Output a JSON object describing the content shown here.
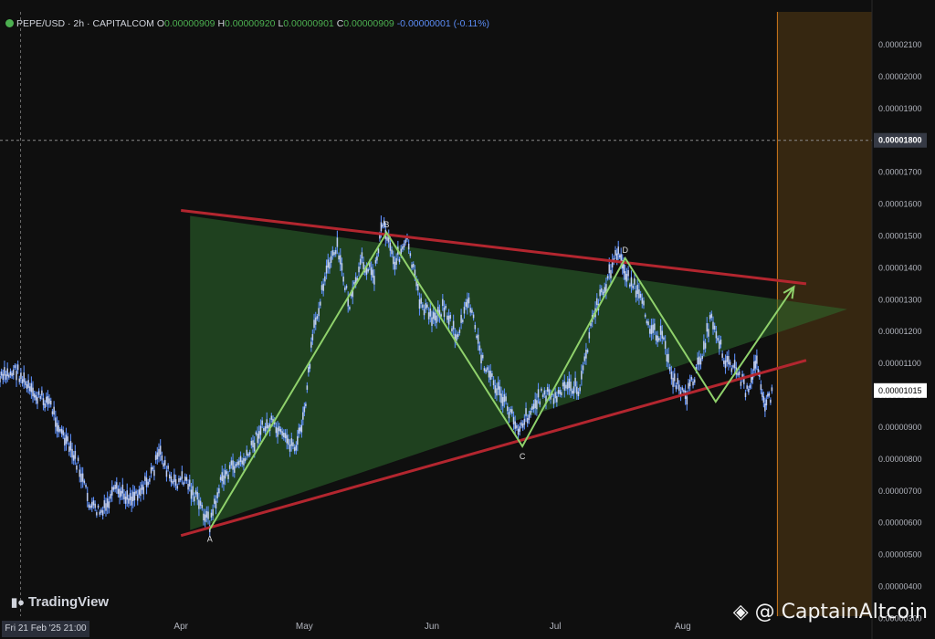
{
  "header": {
    "symbol_line": "PEPE/USD · 2h · CAPITALCOM",
    "open_label": "O",
    "open": "0.00000909",
    "high_label": "H",
    "high": "0.00000920",
    "low_label": "L",
    "low": "0.00000901",
    "close_label": "C",
    "close": "0.00000909",
    "change": "-0.00000001 (-0.11%)"
  },
  "crosshair_date": "Fri 21 Feb '25   21:00",
  "branding": {
    "tradingview": "TradingView",
    "watermark": "@ CaptainAltcoin"
  },
  "colors": {
    "background": "#0f0f0f",
    "candles": "#5b8cf5",
    "triangle_lines": "#b3262f",
    "triangle_fill": "#2e6b2e",
    "wave_line": "#8fd16b",
    "forecast_zone": "#3b2a12",
    "forecast_border": "#d07a1c"
  },
  "chart_data": {
    "type": "line",
    "title": "",
    "y_axis": {
      "min": 3.3e-06,
      "max": 2.16e-05,
      "tick_labels": [
        "0.00002100",
        "0.00002000",
        "0.00001900",
        "0.00001800",
        "0.00001700",
        "0.00001600",
        "0.00001500",
        "0.00001400",
        "0.00001300",
        "0.00001200",
        "0.00001100",
        "0.00001000",
        "0.00000900",
        "0.00000800",
        "0.00000700",
        "0.00000600",
        "0.00000500",
        "0.00000400",
        "0.00000300"
      ],
      "tick_values": [
        2.1e-05,
        2e-05,
        1.9e-05,
        1.8e-05,
        1.7e-05,
        1.6e-05,
        1.5e-05,
        1.4e-05,
        1.3e-05,
        1.2e-05,
        1.1e-05,
        1e-05,
        9e-06,
        8e-06,
        7e-06,
        6e-06,
        5e-06,
        4e-06,
        3e-06
      ],
      "crosshair_label": "0.00001800",
      "crosshair_value": 1.8e-05,
      "last_price_label": "0.00001015",
      "last_price_value": 1.015e-05
    },
    "x_axis": {
      "tick_labels": [
        "Apr",
        "May",
        "Jun",
        "Jul",
        "Aug"
      ],
      "tick_dates": [
        "2025-04-01",
        "2025-05-01",
        "2025-06-01",
        "2025-07-01",
        "2025-08-01"
      ],
      "domain": [
        "2025-02-16",
        "2025-09-16"
      ],
      "crosshair_date": "2025-02-21"
    },
    "price_path": [
      [
        "2025-02-16",
        1.05e-05
      ],
      [
        "2025-02-20",
        1.08e-05
      ],
      [
        "2025-02-24",
        1e-05
      ],
      [
        "2025-02-28",
        9.8e-06
      ],
      [
        "2025-03-03",
        8.8e-06
      ],
      [
        "2025-03-07",
        7.8e-06
      ],
      [
        "2025-03-10",
        6.5e-06
      ],
      [
        "2025-03-13",
        6.3e-06
      ],
      [
        "2025-03-16",
        7e-06
      ],
      [
        "2025-03-20",
        6.8e-06
      ],
      [
        "2025-03-24",
        7.3e-06
      ],
      [
        "2025-03-27",
        8.2e-06
      ],
      [
        "2025-03-30",
        7.2e-06
      ],
      [
        "2025-04-02",
        7.4e-06
      ],
      [
        "2025-04-05",
        6.7e-06
      ],
      [
        "2025-04-08",
        6e-06
      ],
      [
        "2025-04-11",
        7.4e-06
      ],
      [
        "2025-04-14",
        7.8e-06
      ],
      [
        "2025-04-17",
        8e-06
      ],
      [
        "2025-04-20",
        8.9e-06
      ],
      [
        "2025-04-23",
        9.1e-06
      ],
      [
        "2025-04-26",
        8.6e-06
      ],
      [
        "2025-04-29",
        8.4e-06
      ],
      [
        "2025-05-01",
        9.4e-06
      ],
      [
        "2025-05-03",
        1.18e-05
      ],
      [
        "2025-05-06",
        1.38e-05
      ],
      [
        "2025-05-09",
        1.46e-05
      ],
      [
        "2025-05-12",
        1.28e-05
      ],
      [
        "2025-05-15",
        1.42e-05
      ],
      [
        "2025-05-18",
        1.38e-05
      ],
      [
        "2025-05-20",
        1.55e-05
      ],
      [
        "2025-05-23",
        1.42e-05
      ],
      [
        "2025-05-26",
        1.48e-05
      ],
      [
        "2025-05-29",
        1.3e-05
      ],
      [
        "2025-06-01",
        1.24e-05
      ],
      [
        "2025-06-04",
        1.28e-05
      ],
      [
        "2025-06-07",
        1.18e-05
      ],
      [
        "2025-06-10",
        1.3e-05
      ],
      [
        "2025-06-13",
        1.12e-05
      ],
      [
        "2025-06-16",
        1.04e-05
      ],
      [
        "2025-06-19",
        9.7e-06
      ],
      [
        "2025-06-22",
        9e-06
      ],
      [
        "2025-06-25",
        9.5e-06
      ],
      [
        "2025-06-28",
        1.01e-05
      ],
      [
        "2025-07-01",
        9.9e-06
      ],
      [
        "2025-07-04",
        1.03e-05
      ],
      [
        "2025-07-07",
        1.02e-05
      ],
      [
        "2025-07-10",
        1.24e-05
      ],
      [
        "2025-07-13",
        1.34e-05
      ],
      [
        "2025-07-16",
        1.45e-05
      ],
      [
        "2025-07-18",
        1.39e-05
      ],
      [
        "2025-07-21",
        1.32e-05
      ],
      [
        "2025-07-24",
        1.22e-05
      ],
      [
        "2025-07-27",
        1.18e-05
      ],
      [
        "2025-07-30",
        1.04e-05
      ],
      [
        "2025-08-02",
        1e-05
      ],
      [
        "2025-08-05",
        1.1e-05
      ],
      [
        "2025-08-08",
        1.25e-05
      ],
      [
        "2025-08-11",
        1.12e-05
      ],
      [
        "2025-08-14",
        1.08e-05
      ],
      [
        "2025-08-17",
        1e-05
      ],
      [
        "2025-08-19",
        1.12e-05
      ],
      [
        "2025-08-21",
        9.7e-06
      ],
      [
        "2025-08-23",
        1.01e-05
      ]
    ],
    "triangle": {
      "upper_line": [
        [
          "2025-04-01",
          1.58e-05
        ],
        [
          "2025-08-31",
          1.35e-05
        ]
      ],
      "lower_line": [
        [
          "2025-04-01",
          5.6e-06
        ],
        [
          "2025-08-31",
          1.11e-05
        ]
      ],
      "apex": [
        [
          "2025-09-10",
          1.27e-05
        ]
      ]
    },
    "wave_points": [
      {
        "label": "A",
        "date": "2025-04-08",
        "value": 5.8e-06
      },
      {
        "label": "B",
        "date": "2025-05-21",
        "value": 1.51e-05
      },
      {
        "label": "C",
        "date": "2025-06-23",
        "value": 8.4e-06
      },
      {
        "label": "D",
        "date": "2025-07-18",
        "value": 1.43e-05
      },
      {
        "label": "",
        "date": "2025-08-09",
        "value": 9.8e-06
      },
      {
        "label": "",
        "date": "2025-08-28",
        "value": 1.34e-05
      }
    ],
    "forecast_zone_start": "2025-08-24"
  }
}
